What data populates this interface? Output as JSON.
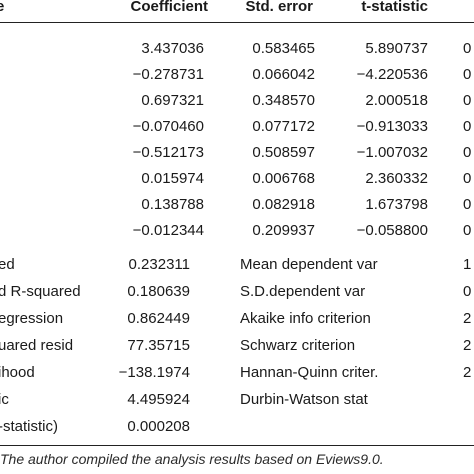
{
  "header": {
    "variable": "e",
    "coefficient": "Coefficient",
    "std_error": "Std. error",
    "t_statistic": "t-statistic",
    "prob": ""
  },
  "coef_rows": [
    {
      "coefficient": "3.437036",
      "std_error": "0.583465",
      "t_statistic": "5.890737",
      "prob": "0"
    },
    {
      "coefficient": "−0.278731",
      "std_error": "0.066042",
      "t_statistic": "−4.220536",
      "prob": "0"
    },
    {
      "coefficient": "0.697321",
      "std_error": "0.348570",
      "t_statistic": "2.000518",
      "prob": "0"
    },
    {
      "coefficient": "−0.070460",
      "std_error": "0.077172",
      "t_statistic": "−0.913033",
      "prob": "0"
    },
    {
      "coefficient": "−0.512173",
      "std_error": "0.508597",
      "t_statistic": "−1.007032",
      "prob": "0"
    },
    {
      "coefficient": "0.015974",
      "std_error": "0.006768",
      "t_statistic": "2.360332",
      "prob": "0"
    },
    {
      "coefficient": "0.138788",
      "std_error": "0.082918",
      "t_statistic": "1.673798",
      "prob": "0"
    },
    {
      "coefficient": "−0.012344",
      "std_error": "0.209937",
      "t_statistic": "−0.058800",
      "prob": "0"
    }
  ],
  "stats_rows": [
    {
      "label": "ed",
      "value": "0.232311",
      "stat_label": "Mean dependent var",
      "stat_value": "1"
    },
    {
      "label": "d R-squared",
      "value": "0.180639",
      "stat_label": "S.D.dependent var",
      "stat_value": "0"
    },
    {
      "label": "egression",
      "value": "0.862449",
      "stat_label": "Akaike info criterion",
      "stat_value": "2"
    },
    {
      "label": "uared resid",
      "value": "77.35715",
      "stat_label": "Schwarz criterion",
      "stat_value": "2"
    },
    {
      "label": "ihood",
      "value": "−138.1974",
      "stat_label": "Hannan-Quinn criter.",
      "stat_value": "2"
    },
    {
      "label": "ic",
      "value": "4.495924",
      "stat_label": "Durbin-Watson stat",
      "stat_value": ""
    },
    {
      "label": "-statistic)",
      "value": "0.000208",
      "stat_label": "",
      "stat_value": ""
    }
  ],
  "note": "The author compiled the analysis results based on Eviews9.0."
}
